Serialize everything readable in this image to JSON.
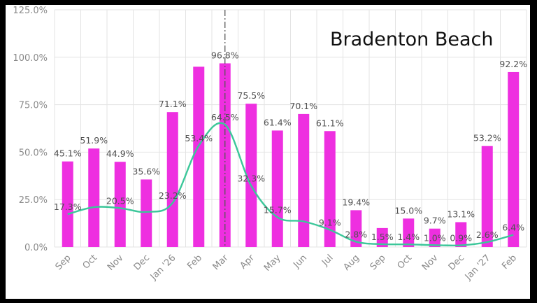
{
  "chart_data": {
    "type": "bar",
    "title": "Bradenton Beach",
    "categories": [
      "Sep",
      "Oct",
      "Nov",
      "Dec",
      "Jan '26",
      "Feb",
      "Mar",
      "Apr",
      "May",
      "Jun",
      "Jul",
      "Aug",
      "Sep",
      "Oct",
      "Nov",
      "Dec",
      "Jan '27",
      "Feb"
    ],
    "series": [
      {
        "type": "bar",
        "values": [
          45.1,
          51.9,
          44.9,
          35.6,
          71.1,
          95.0,
          96.8,
          75.5,
          61.4,
          70.1,
          61.1,
          19.4,
          10.0,
          15.0,
          9.7,
          13.1,
          53.2,
          92.2
        ],
        "labels": [
          "45.1%",
          "51.9%",
          "44.9%",
          "35.6%",
          "71.1%",
          "",
          "96.8%",
          "75.5%",
          "61.4%",
          "70.1%",
          "61.1%",
          "19.4%",
          "",
          "15.0%",
          "9.7%",
          "13.1%",
          "53.2%",
          "92.2%"
        ]
      },
      {
        "type": "line",
        "values": [
          17.3,
          21.0,
          20.5,
          18.5,
          23.2,
          53.4,
          64.5,
          32.3,
          15.7,
          13.5,
          9.1,
          2.8,
          1.5,
          1.4,
          1.0,
          0.9,
          2.6,
          6.4
        ],
        "labels": [
          "17.3%",
          "",
          "20.5%",
          "",
          "23.2%",
          "53.4%",
          "64.5%",
          "32.3%",
          "15.7%",
          "",
          "9.1%",
          "2.8%",
          "1.5%",
          "1.4%",
          "1.0%",
          "0.9%",
          "2.6%",
          "6.4%"
        ]
      }
    ],
    "yticks": [
      "0.0%",
      "25.0%",
      "50.0%",
      "75.0%",
      "100.0%",
      "125.0%"
    ],
    "ylim": [
      0,
      125
    ],
    "grid": true,
    "marker_category": "Mar",
    "colors": {
      "bar": "#ee2fe0",
      "line": "#3cc79a",
      "grid": "#e3e3e3",
      "marker": "#555555"
    }
  }
}
